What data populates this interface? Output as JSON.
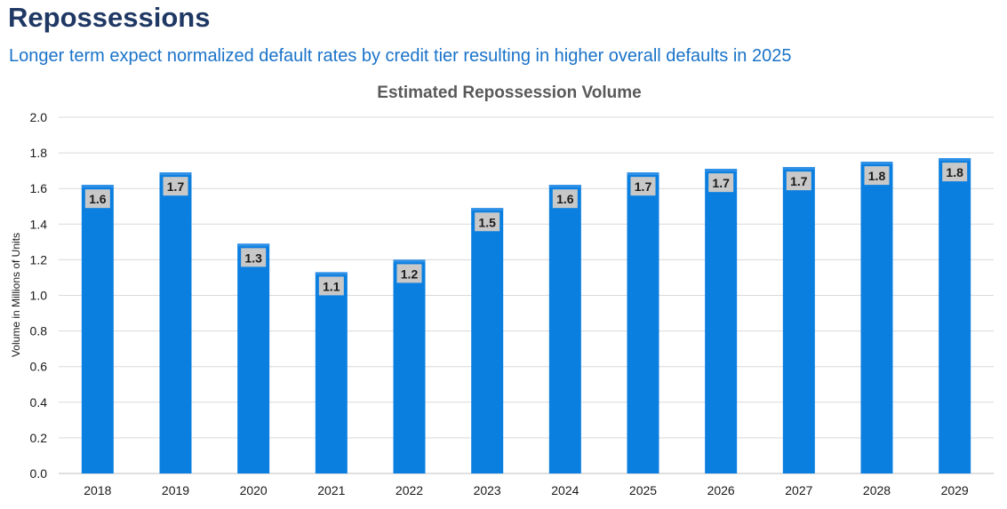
{
  "page": {
    "title": "Repossessions",
    "subtitle": "Longer term expect normalized default rates by credit tier resulting in higher overall defaults in 2025"
  },
  "colors": {
    "bar": "#0b7fe0",
    "bar_top": "#2d8fe6",
    "label_box": "#c8c8c8",
    "label_text": "#1a1a1a",
    "title": "#1f3864",
    "subtitle": "#1a73c9",
    "chart_title": "#595959",
    "grid": "#d9d9d9"
  },
  "chart_data": {
    "type": "bar",
    "title": "Estimated Repossession Volume",
    "xlabel": "",
    "ylabel": "Volume in Millions of Units",
    "categories": [
      "2018",
      "2019",
      "2020",
      "2021",
      "2022",
      "2023",
      "2024",
      "2025",
      "2026",
      "2027",
      "2028",
      "2029"
    ],
    "values": [
      1.62,
      1.69,
      1.29,
      1.13,
      1.2,
      1.49,
      1.62,
      1.69,
      1.71,
      1.72,
      1.75,
      1.77
    ],
    "data_labels": [
      "1.6",
      "1.7",
      "1.3",
      "1.1",
      "1.2",
      "1.5",
      "1.6",
      "1.7",
      "1.7",
      "1.7",
      "1.8",
      "1.8"
    ],
    "ylim": [
      0,
      2.0
    ],
    "yticks": [
      "0.0",
      "0.2",
      "0.4",
      "0.6",
      "0.8",
      "1.0",
      "1.2",
      "1.4",
      "1.6",
      "1.8",
      "2.0"
    ],
    "grid": true,
    "legend": "none"
  }
}
